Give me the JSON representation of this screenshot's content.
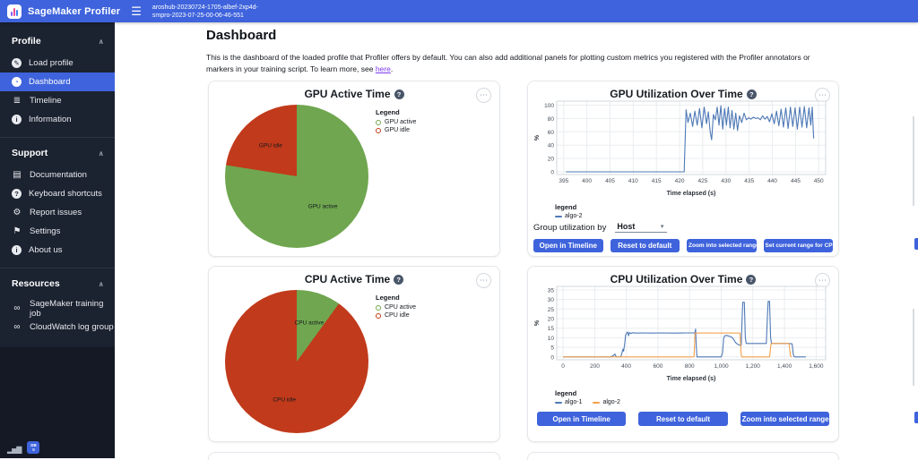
{
  "icons": {
    "hamburger": "☰",
    "ellipsis": "⋯",
    "help": "?",
    "chevron_up": "∧",
    "caret_down": "▾",
    "load_profile": "✎",
    "dashboard": "◔",
    "timeline": "≣",
    "information": "i",
    "documentation": "▤",
    "keyboard_shortcuts": "?",
    "report_issues": "⚙",
    "settings": "⚑",
    "about": "i",
    "link": "∞",
    "bars": "▂▅▇"
  },
  "header": {
    "brand": "SageMaker Profiler",
    "job_name_line1": "aroshub-20230724-1705-albef-2xp4d-",
    "job_name_line2": "smpro-2023-07-25-00-06-46-551"
  },
  "sidebar": {
    "sections": [
      {
        "label": "Profile",
        "items": [
          "Load profile",
          "Dashboard",
          "Timeline",
          "Information"
        ]
      },
      {
        "label": "Support",
        "items": [
          "Documentation",
          "Keyboard shortcuts",
          "Report issues",
          "Settings",
          "About us"
        ]
      },
      {
        "label": "Resources",
        "items": [
          "SageMaker training job",
          "CloudWatch log group"
        ]
      }
    ],
    "badge_line1": "DB",
    "badge_line2": "0"
  },
  "main": {
    "title": "Dashboard",
    "desc_before": "This is the dashboard of the loaded profile that Profiler offers by default. You can also add additional panels for plotting custom metrics you registered with the Profiler annotators or markers in your training script. To learn more, see ",
    "link_text": "here",
    "desc_after": "."
  },
  "gpu_util_panel": {
    "legend_title": "legend",
    "group_by_label": "Group utilization by",
    "group_by_value": "Host",
    "buttons": [
      "Open in Timeline",
      "Reset to default",
      "Zoom into selected range",
      "Set current range for CPU"
    ]
  },
  "cpu_util_panel": {
    "legend_title": "legend",
    "buttons": [
      "Open in Timeline",
      "Reset to default",
      "Zoom into selected range"
    ]
  },
  "chart_data": [
    {
      "type": "pie",
      "title": "GPU Active Time",
      "legend_title": "Legend",
      "slices": [
        {
          "label": "GPU active",
          "value": 77.5,
          "color": "#6fa64f"
        },
        {
          "label": "GPU idle",
          "value": 22.5,
          "color": "#c13a1b"
        }
      ]
    },
    {
      "type": "line",
      "title": "GPU Utilization Over Time",
      "xlabel": "Time elapsed (s)",
      "ylabel": "%",
      "xlim": [
        393.5,
        451.5
      ],
      "ylim": [
        -4,
        106
      ],
      "x_ticks": [
        [
          395,
          "395"
        ],
        [
          400,
          "400"
        ],
        [
          405,
          "405"
        ],
        [
          410,
          "410"
        ],
        [
          415,
          "415"
        ],
        [
          420,
          "420"
        ],
        [
          425,
          "425"
        ],
        [
          430,
          "430"
        ],
        [
          435,
          "435"
        ],
        [
          440,
          "440"
        ],
        [
          445,
          "445"
        ],
        [
          450,
          "450"
        ]
      ],
      "y_ticks": [
        [
          0,
          "0"
        ],
        [
          20,
          "20"
        ],
        [
          40,
          "40"
        ],
        [
          60,
          "60"
        ],
        [
          80,
          "80"
        ],
        [
          100,
          "100"
        ]
      ],
      "grid": true,
      "legend_position": "below",
      "series": [
        {
          "name": "algo-2",
          "color": "#4e79b6",
          "points": [
            [
              395.5,
              0
            ],
            [
              421,
              0
            ],
            [
              421.4,
              93
            ],
            [
              421.8,
              74
            ],
            [
              422.3,
              88
            ],
            [
              422.8,
              68
            ],
            [
              423.3,
              91
            ],
            [
              423.8,
              70
            ],
            [
              424.3,
              95
            ],
            [
              424.8,
              66
            ],
            [
              425.3,
              97
            ],
            [
              425.8,
              72
            ],
            [
              426.2,
              90
            ],
            [
              426.6,
              60
            ],
            [
              426.9,
              48
            ],
            [
              427.3,
              86
            ],
            [
              427.7,
              78
            ],
            [
              428.1,
              97
            ],
            [
              428.5,
              70
            ],
            [
              428.9,
              99
            ],
            [
              429.3,
              64
            ],
            [
              429.7,
              95
            ],
            [
              430.1,
              70
            ],
            [
              430.5,
              97
            ],
            [
              430.9,
              66
            ],
            [
              431.3,
              92
            ],
            [
              431.7,
              64
            ],
            [
              432.1,
              88
            ],
            [
              432.5,
              62
            ],
            [
              432.9,
              84
            ],
            [
              433.4,
              74
            ],
            [
              433.9,
              88
            ],
            [
              434.4,
              78
            ],
            [
              434.9,
              81
            ],
            [
              435.4,
              79
            ],
            [
              435.9,
              82
            ],
            [
              436.4,
              80
            ],
            [
              436.9,
              81
            ],
            [
              437.4,
              78
            ],
            [
              437.9,
              84
            ],
            [
              438.4,
              79
            ],
            [
              438.9,
              83
            ],
            [
              439.4,
              75
            ],
            [
              439.9,
              87
            ],
            [
              440.4,
              72
            ],
            [
              440.9,
              91
            ],
            [
              441.4,
              69
            ],
            [
              441.9,
              94
            ],
            [
              442.4,
              67
            ],
            [
              442.9,
              96
            ],
            [
              443.4,
              65
            ],
            [
              443.9,
              97
            ],
            [
              444.4,
              68
            ],
            [
              444.9,
              96
            ],
            [
              445.4,
              64
            ],
            [
              445.9,
              97
            ],
            [
              446.4,
              67
            ],
            [
              446.9,
              98
            ],
            [
              447.4,
              66
            ],
            [
              447.9,
              96
            ],
            [
              448.3,
              70
            ],
            [
              448.6,
              97
            ],
            [
              448.9,
              50
            ]
          ]
        }
      ]
    },
    {
      "type": "pie",
      "title": "CPU Active Time",
      "legend_title": "Legend",
      "slices": [
        {
          "label": "CPU active",
          "value": 10,
          "color": "#6fa64f"
        },
        {
          "label": "CPU idle",
          "value": 90,
          "color": "#c13a1b"
        }
      ]
    },
    {
      "type": "line",
      "title": "CPU Utilization Over Time",
      "xlabel": "Time elapsed (s)",
      "ylabel": "%",
      "xlim": [
        -40,
        1660
      ],
      "ylim": [
        -1.5,
        36.8
      ],
      "x_ticks": [
        [
          0,
          "0"
        ],
        [
          200,
          "200"
        ],
        [
          400,
          "400"
        ],
        [
          600,
          "600"
        ],
        [
          800,
          "800"
        ],
        [
          1000,
          "1,000"
        ],
        [
          1200,
          "1,200"
        ],
        [
          1400,
          "1,400"
        ],
        [
          1600,
          "1,600"
        ]
      ],
      "y_ticks": [
        [
          0,
          "0"
        ],
        [
          5,
          "5"
        ],
        [
          10,
          "10"
        ],
        [
          15,
          "15"
        ],
        [
          20,
          "20"
        ],
        [
          25,
          "25"
        ],
        [
          30,
          "30"
        ],
        [
          35,
          "35"
        ]
      ],
      "grid": true,
      "legend_position": "below",
      "series": [
        {
          "name": "algo-1",
          "color": "#4e79b6",
          "points": [
            [
              0,
              0
            ],
            [
              300,
              0
            ],
            [
              320,
              0.8
            ],
            [
              328,
              1.5
            ],
            [
              333,
              0.5
            ],
            [
              340,
              0
            ],
            [
              365,
              0
            ],
            [
              372,
              2
            ],
            [
              378,
              4
            ],
            [
              383,
              3
            ],
            [
              390,
              7
            ],
            [
              396,
              11.5
            ],
            [
              402,
              12.5
            ],
            [
              408,
              13
            ],
            [
              414,
              11
            ],
            [
              420,
              12.8
            ],
            [
              428,
              12.2
            ],
            [
              440,
              12.6
            ],
            [
              460,
              12.4
            ],
            [
              500,
              12.5
            ],
            [
              560,
              12.4
            ],
            [
              620,
              12.5
            ],
            [
              700,
              12.4
            ],
            [
              780,
              12.5
            ],
            [
              825,
              12.5
            ],
            [
              833,
              12.3
            ],
            [
              838,
              14.5
            ],
            [
              842,
              6
            ],
            [
              846,
              0
            ],
            [
              1000,
              0
            ],
            [
              1008,
              2
            ],
            [
              1015,
              9.5
            ],
            [
              1022,
              11
            ],
            [
              1035,
              11.2
            ],
            [
              1050,
              10.8
            ],
            [
              1065,
              10.4
            ],
            [
              1080,
              9
            ],
            [
              1090,
              7.5
            ],
            [
              1100,
              6.8
            ],
            [
              1112,
              6.2
            ],
            [
              1126,
              6
            ],
            [
              1132,
              20
            ],
            [
              1136,
              28.5
            ],
            [
              1146,
              28.5
            ],
            [
              1152,
              10
            ],
            [
              1158,
              7
            ],
            [
              1200,
              7
            ],
            [
              1250,
              7
            ],
            [
              1285,
              7
            ],
            [
              1292,
              22
            ],
            [
              1297,
              29
            ],
            [
              1305,
              29
            ],
            [
              1312,
              10
            ],
            [
              1318,
              7
            ],
            [
              1380,
              7
            ],
            [
              1430,
              7
            ],
            [
              1448,
              6.8
            ],
            [
              1456,
              1
            ],
            [
              1462,
              0
            ],
            [
              1535,
              0
            ]
          ]
        },
        {
          "name": "algo-2",
          "color": "#f2a14c",
          "points": [
            [
              0,
              0
            ],
            [
              820,
              0
            ],
            [
              828,
              0.2
            ],
            [
              834,
              12.4
            ],
            [
              900,
              12.5
            ],
            [
              1000,
              12.4
            ],
            [
              1060,
              12.5
            ],
            [
              1118,
              12.4
            ],
            [
              1126,
              1
            ],
            [
              1130,
              0
            ],
            [
              1305,
              0
            ],
            [
              1315,
              6.8
            ],
            [
              1325,
              7
            ],
            [
              1400,
              7
            ],
            [
              1428,
              7
            ],
            [
              1438,
              0.5
            ],
            [
              1445,
              0
            ]
          ]
        }
      ]
    }
  ]
}
